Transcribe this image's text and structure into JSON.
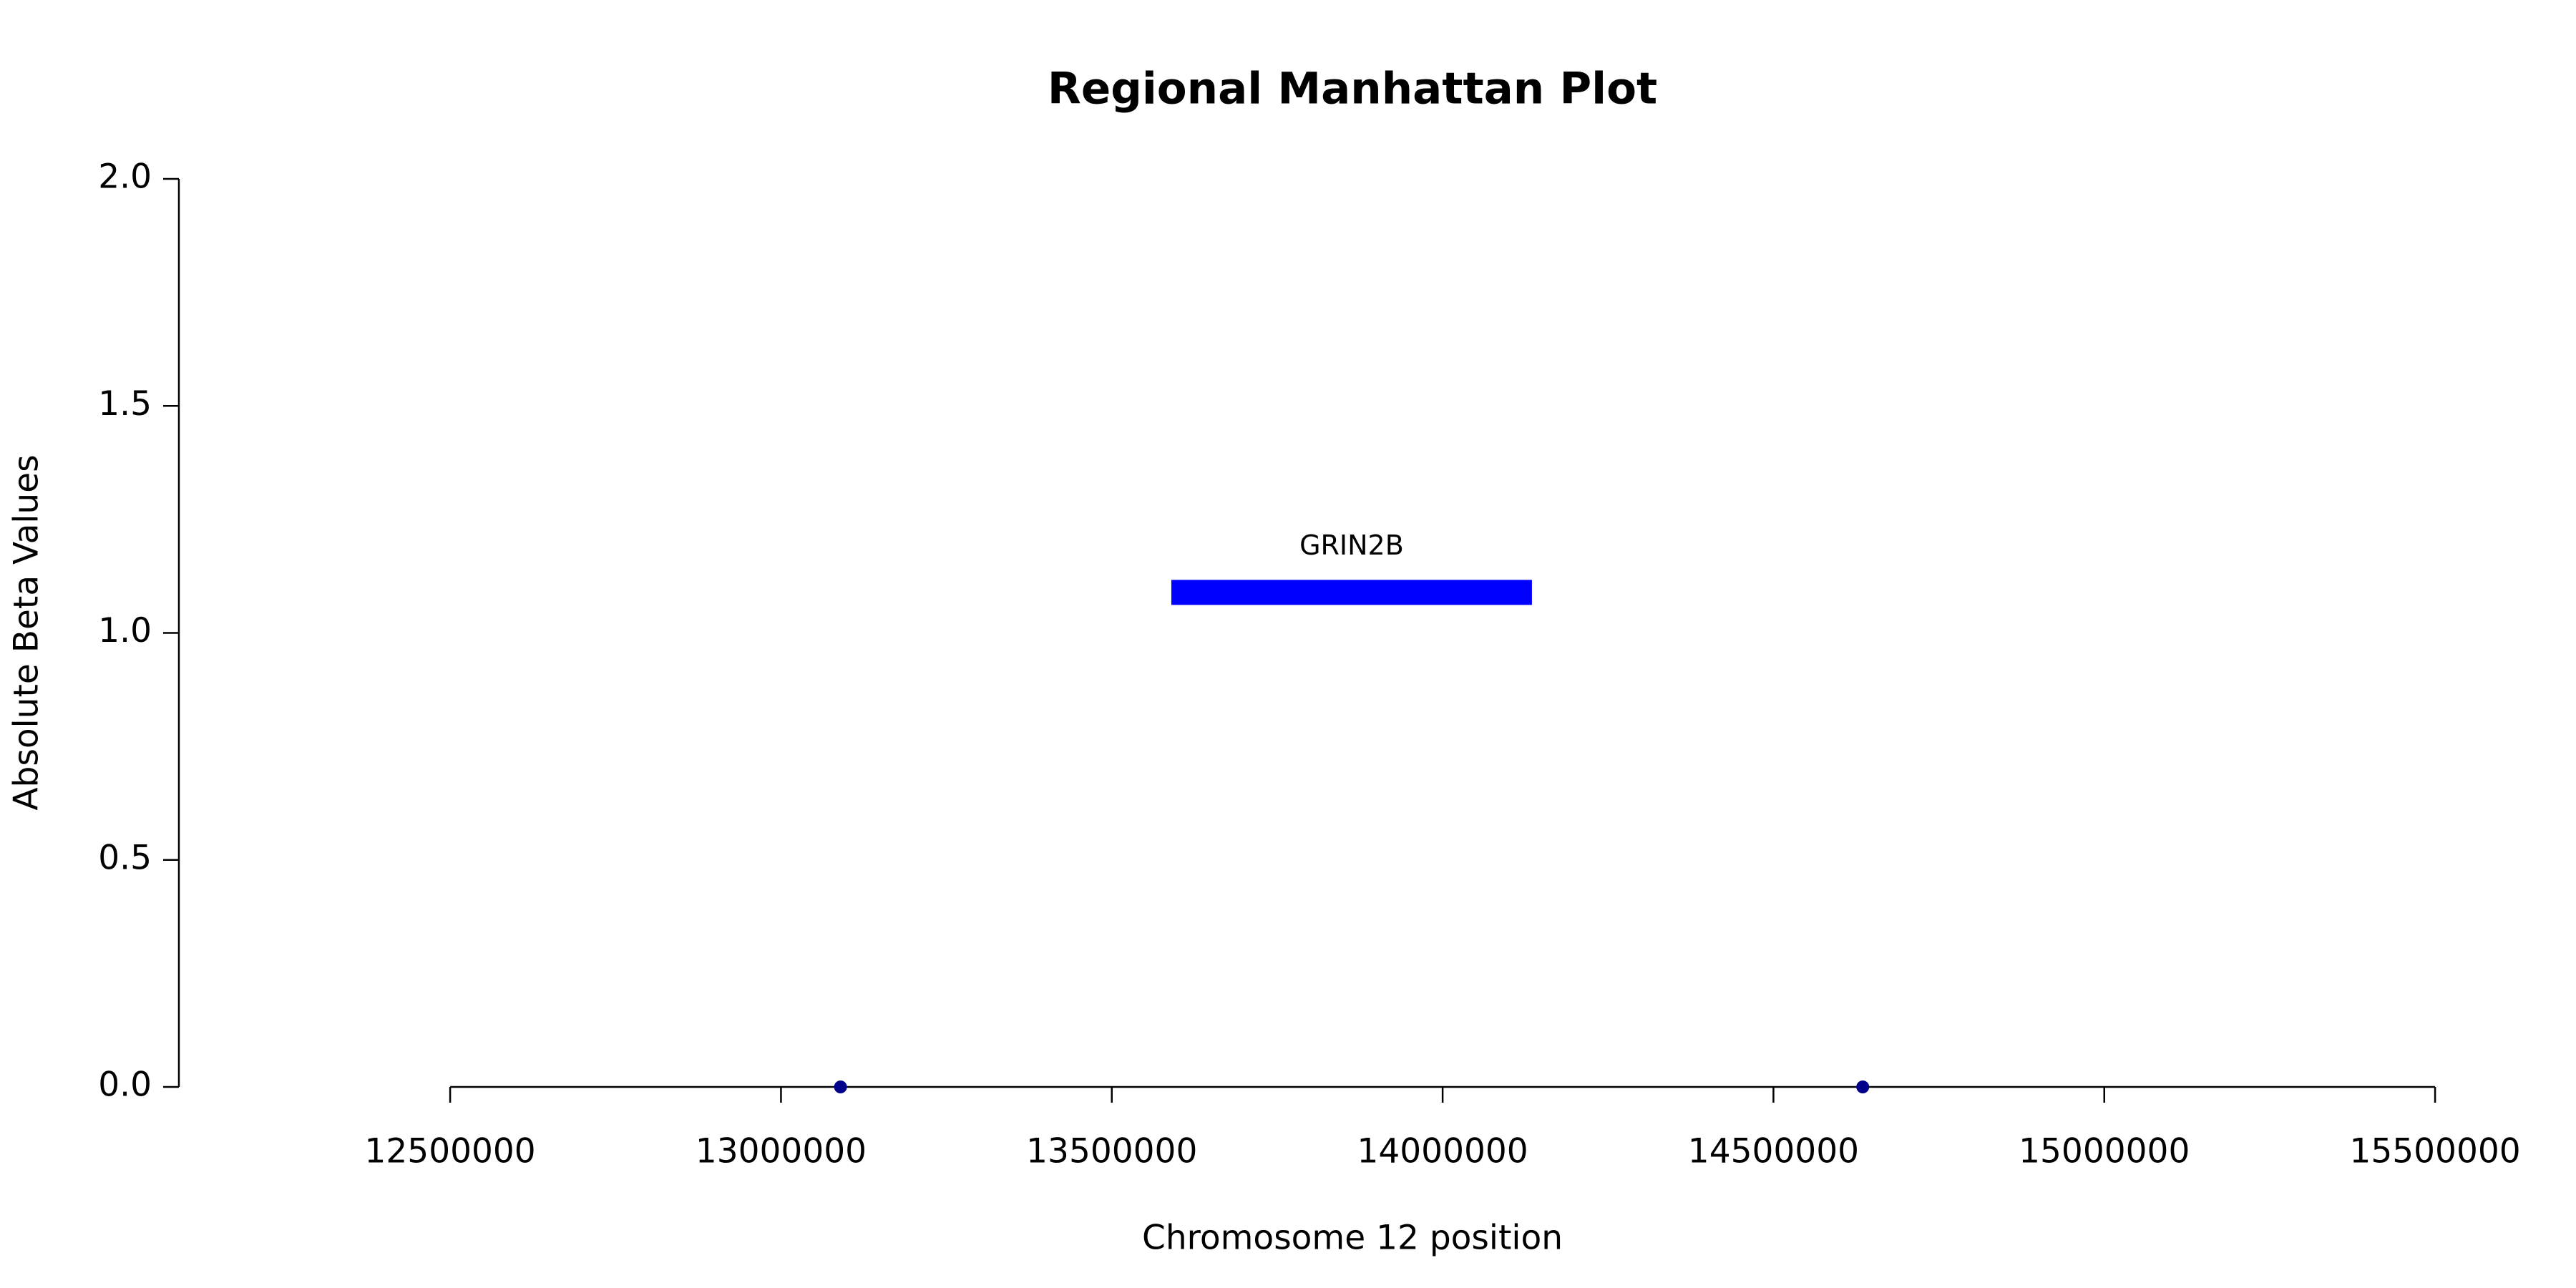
{
  "chart_data": {
    "type": "scatter",
    "title": "Regional Manhattan Plot",
    "x_label": "Chromosome 12 position",
    "y_label": "Absolute Beta Values",
    "x": [
      13090000,
      14635000
    ],
    "values": [
      0,
      0
    ],
    "color": "#00008b",
    "xlim": [
      12090000,
      15700000
    ],
    "xticks": [
      12500000,
      13000000,
      13500000,
      14000000,
      14500000,
      15000000,
      15500000
    ],
    "ylim": [
      0,
      2
    ],
    "yticks": [
      0.0,
      0.5,
      1.0,
      1.5,
      2.0
    ],
    "genes": [
      {
        "label": "GRIN2B",
        "start": 13590000,
        "end": 14135000,
        "y": 1.09,
        "color": "#0000ff"
      }
    ]
  }
}
